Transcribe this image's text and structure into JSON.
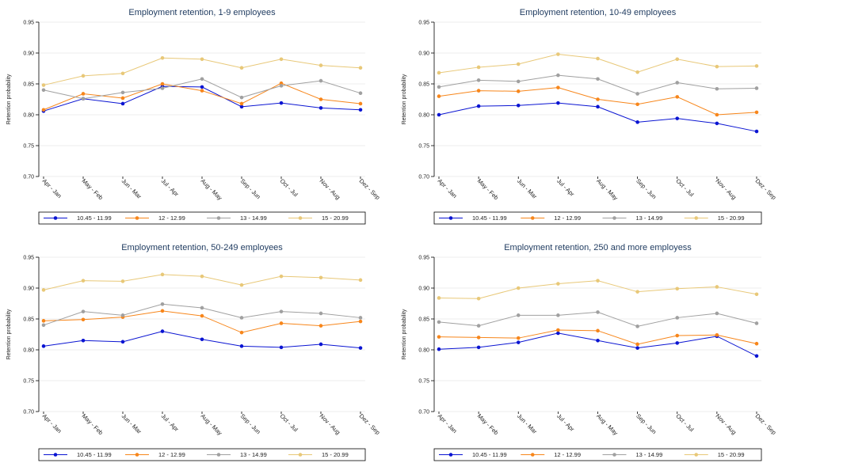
{
  "chart_data": [
    {
      "type": "line",
      "title": "Employment retention, 1-9 employees",
      "ylabel": "Retention probability",
      "xlabel": "",
      "categories": [
        "Apr - Jan",
        "May - Feb",
        "Jun - Mar",
        "Jul - Apr",
        "Aug - May",
        "Sep - Jun",
        "Oct - Jul",
        "Nov - Aug",
        "Dez - Sep"
      ],
      "ylim": [
        0.7,
        0.95
      ],
      "yticks": [
        "0.70",
        "0.75",
        "0.80",
        "0.85",
        "0.90",
        "0.95"
      ],
      "grid": true,
      "legend": "bottom",
      "series": [
        {
          "name": "10.45 - 11.99",
          "color": "#0a14d2",
          "values": [
            0.806,
            0.826,
            0.818,
            0.846,
            0.845,
            0.813,
            0.819,
            0.811,
            0.808
          ]
        },
        {
          "name": "12 - 12.99",
          "color": "#f7861b",
          "values": [
            0.808,
            0.834,
            0.827,
            0.85,
            0.839,
            0.818,
            0.851,
            0.825,
            0.818
          ]
        },
        {
          "name": "13 - 14.99",
          "color": "#a0a0a0",
          "values": [
            0.84,
            0.826,
            0.836,
            0.843,
            0.858,
            0.828,
            0.847,
            0.855,
            0.835
          ]
        },
        {
          "name": "15 - 20.99",
          "color": "#e8c878",
          "values": [
            0.848,
            0.863,
            0.867,
            0.892,
            0.89,
            0.876,
            0.89,
            0.88,
            0.876
          ]
        }
      ]
    },
    {
      "type": "line",
      "title": "Employment retention, 10-49 employees",
      "ylabel": "Retention probability",
      "xlabel": "",
      "categories": [
        "Apr - Jan",
        "May - Feb",
        "Jun - Mar",
        "Jul - Apr",
        "Aug - May",
        "Sep - Jun",
        "Oct - Jul",
        "Nov - Aug",
        "Dez - Sep"
      ],
      "ylim": [
        0.7,
        0.95
      ],
      "yticks": [
        "0.70",
        "0.75",
        "0.80",
        "0.85",
        "0.90",
        "0.95"
      ],
      "grid": true,
      "legend": "bottom",
      "series": [
        {
          "name": "10.45 - 11.99",
          "color": "#0a14d2",
          "values": [
            0.8,
            0.814,
            0.815,
            0.819,
            0.813,
            0.788,
            0.794,
            0.786,
            0.773
          ]
        },
        {
          "name": "12 - 12.99",
          "color": "#f7861b",
          "values": [
            0.83,
            0.839,
            0.838,
            0.844,
            0.825,
            0.817,
            0.829,
            0.8,
            0.804
          ]
        },
        {
          "name": "13 - 14.99",
          "color": "#a0a0a0",
          "values": [
            0.845,
            0.856,
            0.854,
            0.864,
            0.858,
            0.834,
            0.852,
            0.842,
            0.843
          ]
        },
        {
          "name": "15 - 20.99",
          "color": "#e8c878",
          "values": [
            0.868,
            0.877,
            0.882,
            0.898,
            0.891,
            0.869,
            0.89,
            0.878,
            0.879
          ]
        }
      ]
    },
    {
      "type": "line",
      "title": "Employment retention, 50-249 employees",
      "ylabel": "Retention probability",
      "xlabel": "",
      "categories": [
        "Apr - Jan",
        "May - Feb",
        "Jun - Mar",
        "Jul - Apr",
        "Aug - May",
        "Sep - Jun",
        "Oct - Jul",
        "Nov - Aug",
        "Dez - Sep"
      ],
      "ylim": [
        0.7,
        0.95
      ],
      "yticks": [
        "0.70",
        "0.75",
        "0.80",
        "0.85",
        "0.90",
        "0.95"
      ],
      "grid": true,
      "legend": "bottom",
      "series": [
        {
          "name": "10.45 - 11.99",
          "color": "#0a14d2",
          "values": [
            0.806,
            0.815,
            0.813,
            0.83,
            0.817,
            0.806,
            0.804,
            0.809,
            0.803
          ]
        },
        {
          "name": "12 - 12.99",
          "color": "#f7861b",
          "values": [
            0.847,
            0.849,
            0.853,
            0.863,
            0.855,
            0.828,
            0.843,
            0.839,
            0.846
          ]
        },
        {
          "name": "13 - 14.99",
          "color": "#a0a0a0",
          "values": [
            0.84,
            0.862,
            0.856,
            0.874,
            0.868,
            0.852,
            0.862,
            0.859,
            0.852
          ]
        },
        {
          "name": "15 - 20.99",
          "color": "#e8c878",
          "values": [
            0.897,
            0.912,
            0.911,
            0.922,
            0.919,
            0.905,
            0.919,
            0.917,
            0.913
          ]
        }
      ]
    },
    {
      "type": "line",
      "title": "Employment retention, 250 and more employess",
      "ylabel": "Retention probability",
      "xlabel": "",
      "categories": [
        "Apr - Jan",
        "May - Feb",
        "Jun - Mar",
        "Jul - Apr",
        "Aug - May",
        "Sep - Jun",
        "Oct - Jul",
        "Nov - Aug",
        "Dez - Sep"
      ],
      "ylim": [
        0.7,
        0.95
      ],
      "yticks": [
        "0.70",
        "0.75",
        "0.80",
        "0.85",
        "0.90",
        "0.95"
      ],
      "grid": true,
      "legend": "bottom",
      "series": [
        {
          "name": "10.45 - 11.99",
          "color": "#0a14d2",
          "values": [
            0.801,
            0.804,
            0.812,
            0.827,
            0.815,
            0.803,
            0.811,
            0.822,
            0.79
          ]
        },
        {
          "name": "12 - 12.99",
          "color": "#f7861b",
          "values": [
            0.821,
            0.82,
            0.819,
            0.832,
            0.831,
            0.809,
            0.823,
            0.824,
            0.81
          ]
        },
        {
          "name": "13 - 14.99",
          "color": "#a0a0a0",
          "values": [
            0.845,
            0.839,
            0.856,
            0.856,
            0.861,
            0.838,
            0.852,
            0.859,
            0.843
          ]
        },
        {
          "name": "15 - 20.99",
          "color": "#e8c878",
          "values": [
            0.884,
            0.883,
            0.9,
            0.907,
            0.912,
            0.894,
            0.899,
            0.902,
            0.89
          ]
        }
      ]
    }
  ]
}
